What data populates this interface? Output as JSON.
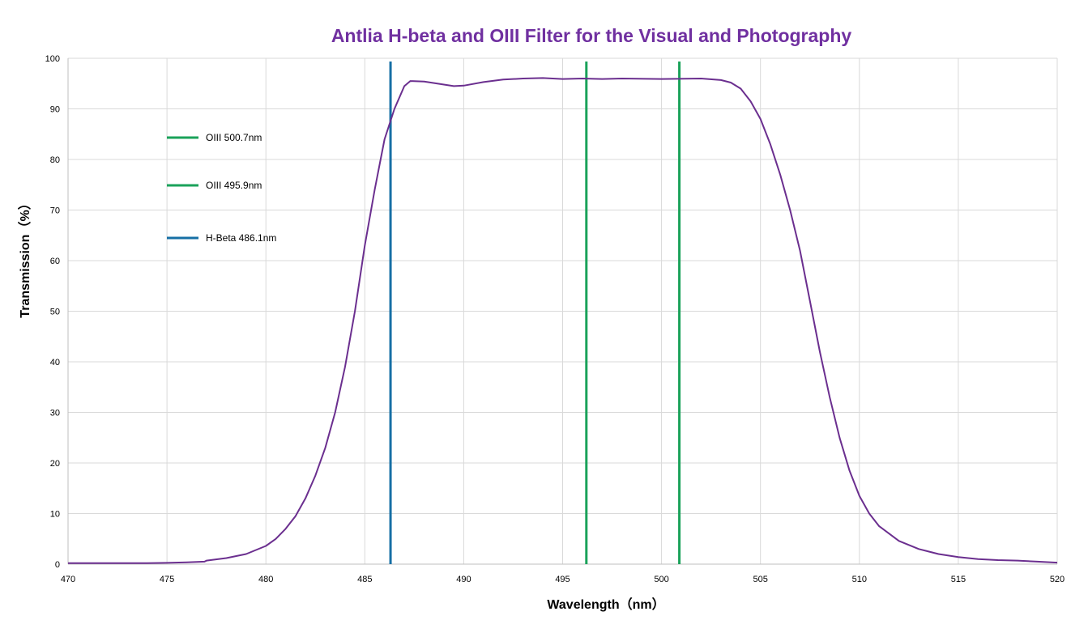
{
  "chart_data": {
    "type": "line",
    "title": "Antlia H-beta and OIII Filter for the Visual and Photography",
    "xlabel": "Wavelength（nm）",
    "ylabel": "Transmission（%）",
    "xlim": [
      470,
      520
    ],
    "ylim": [
      0,
      100
    ],
    "x_ticks": [
      "470",
      "475",
      "480",
      "485",
      "490",
      "495",
      "500",
      "505",
      "510",
      "515",
      "520"
    ],
    "y_ticks": [
      "0",
      "10",
      "20",
      "30",
      "40",
      "50",
      "60",
      "70",
      "80",
      "90",
      "100"
    ],
    "grid": true,
    "series": [
      {
        "color": "#6b2f8f",
        "points": [
          [
            470,
            0.2
          ],
          [
            472,
            0.2
          ],
          [
            474,
            0.2
          ],
          [
            475,
            0.25
          ],
          [
            476,
            0.35
          ],
          [
            476.9,
            0.5
          ],
          [
            477,
            0.7
          ],
          [
            478,
            1.2
          ],
          [
            479,
            2.0
          ],
          [
            480,
            3.6
          ],
          [
            480.5,
            5.0
          ],
          [
            481,
            7.0
          ],
          [
            481.5,
            9.5
          ],
          [
            482,
            13
          ],
          [
            482.5,
            17.5
          ],
          [
            483,
            23
          ],
          [
            483.5,
            30
          ],
          [
            484,
            39
          ],
          [
            484.5,
            50
          ],
          [
            485,
            63
          ],
          [
            485.5,
            74
          ],
          [
            485.8,
            80
          ],
          [
            486,
            84
          ],
          [
            486.5,
            90
          ],
          [
            487,
            94.5
          ],
          [
            487.3,
            95.5
          ],
          [
            488,
            95.4
          ],
          [
            489,
            94.8
          ],
          [
            489.5,
            94.5
          ],
          [
            490,
            94.6
          ],
          [
            491,
            95.3
          ],
          [
            492,
            95.8
          ],
          [
            493,
            96.0
          ],
          [
            494,
            96.1
          ],
          [
            495,
            95.9
          ],
          [
            496,
            96.0
          ],
          [
            497,
            95.9
          ],
          [
            498,
            96.0
          ],
          [
            500,
            95.9
          ],
          [
            502,
            96.0
          ],
          [
            503,
            95.7
          ],
          [
            503.5,
            95.2
          ],
          [
            504,
            94.0
          ],
          [
            504.5,
            91.5
          ],
          [
            505,
            88
          ],
          [
            505.5,
            83
          ],
          [
            506,
            77
          ],
          [
            506.5,
            70
          ],
          [
            507,
            62
          ],
          [
            507.5,
            52
          ],
          [
            508,
            42
          ],
          [
            508.5,
            33
          ],
          [
            509,
            25
          ],
          [
            509.5,
            18.5
          ],
          [
            510,
            13.5
          ],
          [
            510.5,
            10
          ],
          [
            511,
            7.5
          ],
          [
            512,
            4.6
          ],
          [
            513,
            3.0
          ],
          [
            514,
            2.0
          ],
          [
            515,
            1.4
          ],
          [
            516,
            1.0
          ],
          [
            517,
            0.8
          ],
          [
            518,
            0.7
          ],
          [
            519,
            0.5
          ],
          [
            520,
            0.3
          ]
        ]
      }
    ],
    "markers": [
      {
        "name": "OIII 500.7nm",
        "x": 500.9,
        "color": "#1aa25a"
      },
      {
        "name": "OIII 495.9nm",
        "x": 496.2,
        "color": "#1aa25a"
      },
      {
        "name": "H-Beta 486.1nm",
        "x": 486.3,
        "color": "#166fa5"
      }
    ],
    "legend_position": "top-left",
    "title_color": "#7030a0",
    "grid_color": "#d9d9d9"
  }
}
